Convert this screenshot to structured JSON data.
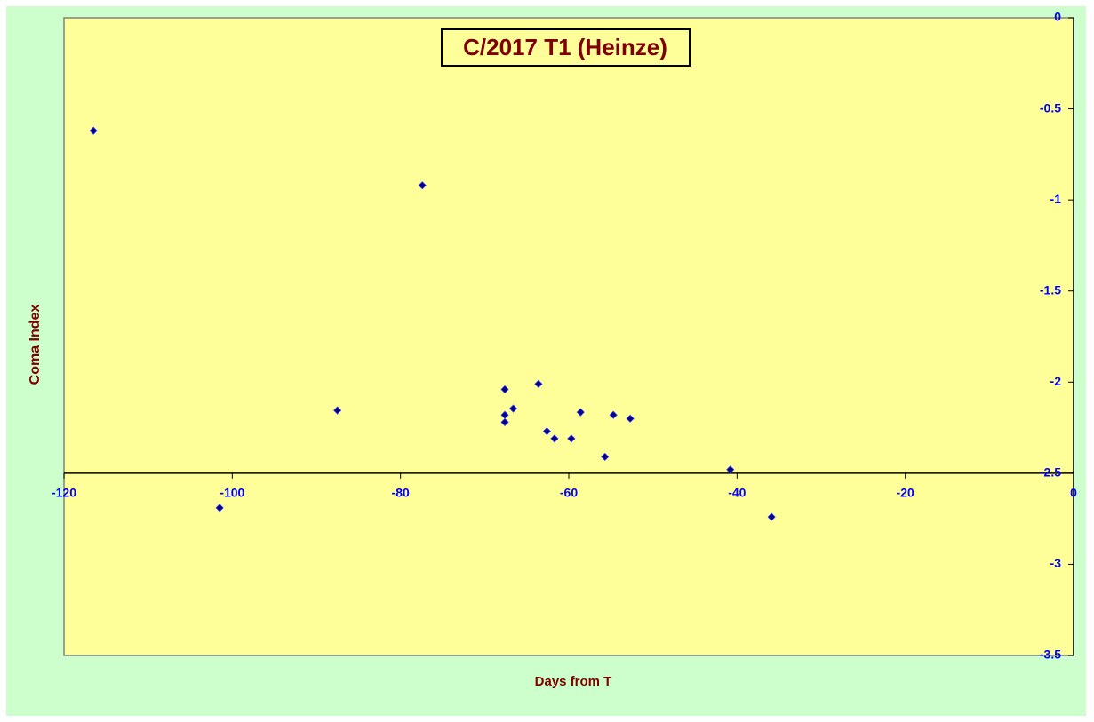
{
  "chart_data": {
    "type": "scatter",
    "title": "C/2017 T1 (Heinze)",
    "x_label": "Days from T",
    "y_label": "Coma Index",
    "x": [
      -116.5,
      -77.4,
      -87.5,
      -101.5,
      -67.6,
      -67.6,
      -67.6,
      -66.6,
      -63.6,
      -62.6,
      -61.7,
      -59.7,
      -58.6,
      -55.7,
      -54.7,
      -52.7,
      -40.8,
      -35.9
    ],
    "values": [
      -0.62,
      -0.92,
      -2.155,
      -2.69,
      -2.04,
      -2.18,
      -2.22,
      -2.145,
      -2.01,
      -2.27,
      -2.31,
      -2.31,
      -2.165,
      -2.41,
      -2.18,
      -2.2,
      -2.48,
      -2.74
    ],
    "color": "#000080",
    "xlim": [
      -120,
      0
    ],
    "xticks": [
      -120,
      -100,
      -80,
      -60,
      -40,
      -20,
      0
    ],
    "ylim": [
      -3.5,
      0
    ],
    "yticks": [
      0,
      -0.5,
      -1,
      -1.5,
      -2,
      -2.5,
      -3,
      -3.5
    ],
    "x_axis_crosses_at": -2.5,
    "grid": false
  }
}
